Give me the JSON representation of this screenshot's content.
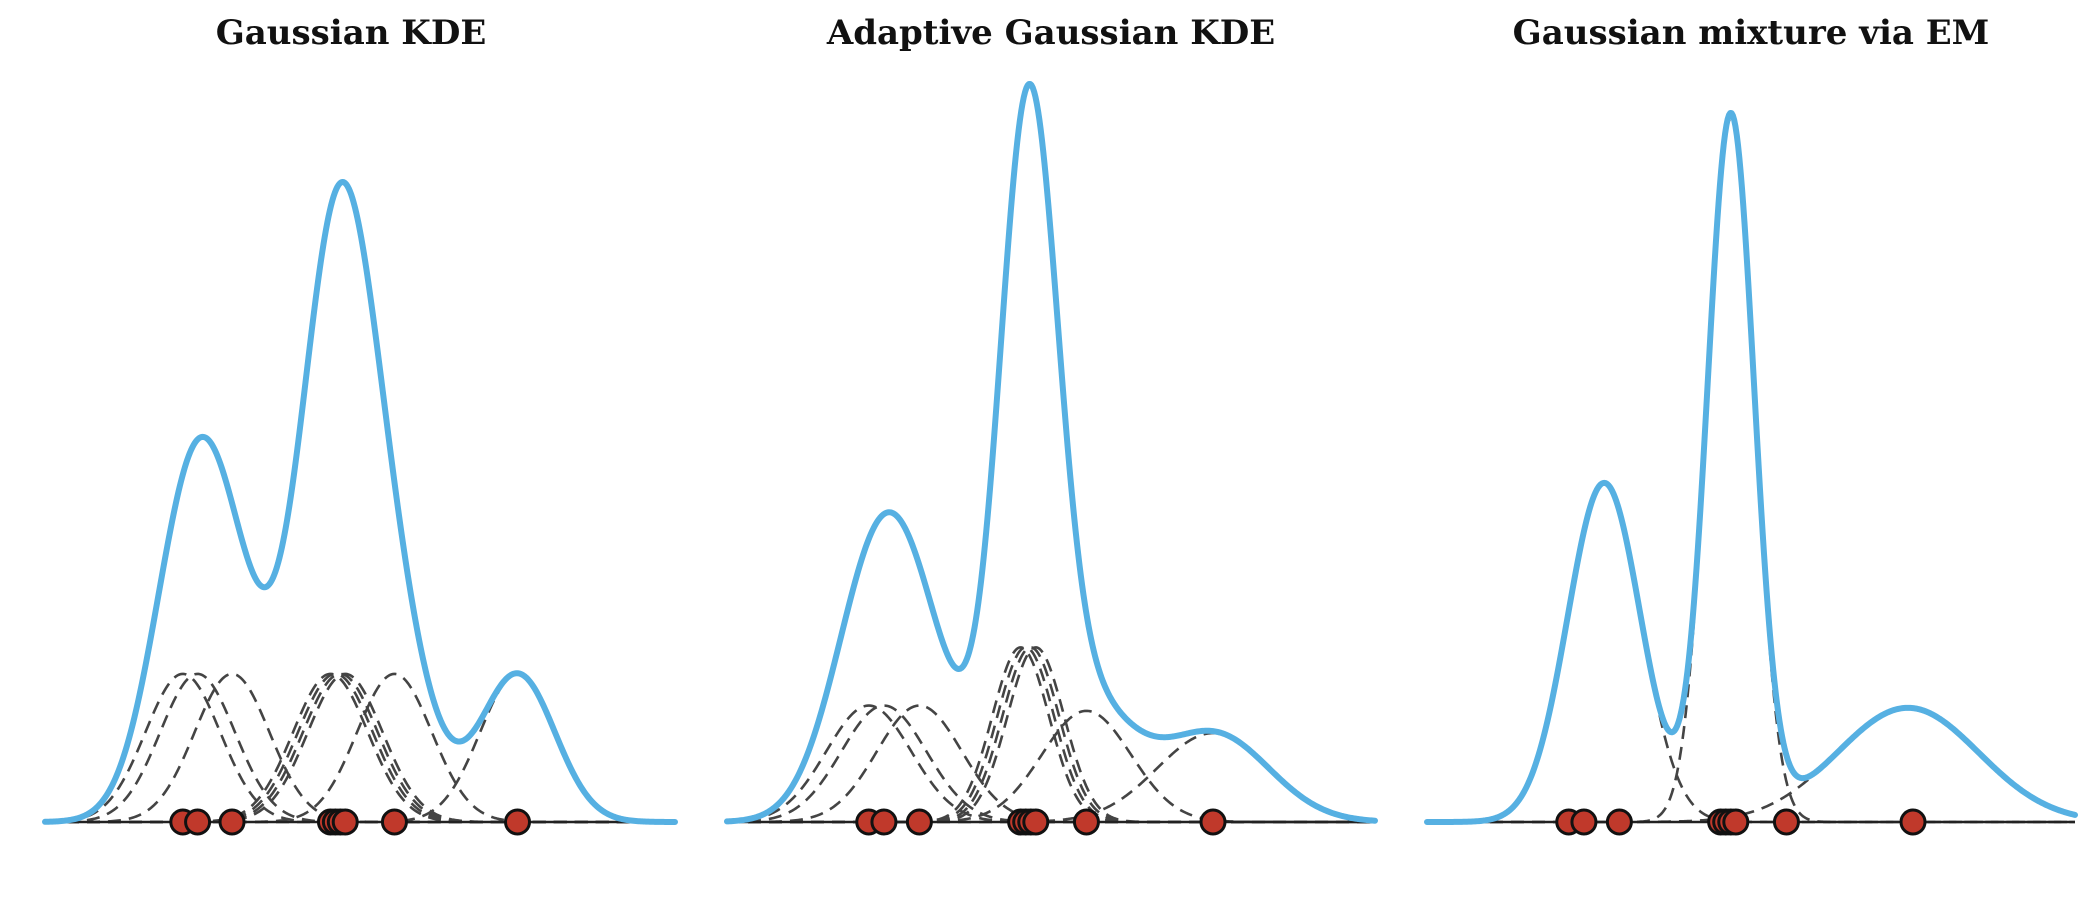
{
  "colors": {
    "density": "#56B0E2",
    "component": "#444444",
    "point_fill": "#C0392B",
    "point_edge": "#111111",
    "axis": "#222222"
  },
  "chart_data": [
    {
      "type": "line",
      "title": "Gaussian KDE",
      "x_range": [
        -3.2,
        3.2
      ],
      "points": [
        -1.8,
        -1.65,
        -1.3,
        -0.3,
        -0.25,
        -0.2,
        -0.15,
        0.35,
        1.6
      ],
      "components": [
        {
          "mu": -1.8,
          "sigma": 0.38,
          "w": 0.111
        },
        {
          "mu": -1.65,
          "sigma": 0.38,
          "w": 0.111
        },
        {
          "mu": -1.3,
          "sigma": 0.38,
          "w": 0.111
        },
        {
          "mu": -0.3,
          "sigma": 0.38,
          "w": 0.111
        },
        {
          "mu": -0.25,
          "sigma": 0.38,
          "w": 0.111
        },
        {
          "mu": -0.2,
          "sigma": 0.38,
          "w": 0.111
        },
        {
          "mu": -0.15,
          "sigma": 0.38,
          "w": 0.111
        },
        {
          "mu": 0.35,
          "sigma": 0.38,
          "w": 0.111
        },
        {
          "mu": 1.6,
          "sigma": 0.38,
          "w": 0.111
        }
      ]
    },
    {
      "type": "line",
      "title": "Adaptive Gaussian KDE",
      "x_range": [
        -3.2,
        3.2
      ],
      "points": [
        -1.8,
        -1.65,
        -1.3,
        -0.3,
        -0.25,
        -0.2,
        -0.15,
        0.35,
        1.6
      ],
      "components": [
        {
          "mu": -1.8,
          "sigma": 0.42,
          "w": 0.111
        },
        {
          "mu": -1.65,
          "sigma": 0.42,
          "w": 0.111
        },
        {
          "mu": -1.3,
          "sigma": 0.42,
          "w": 0.111
        },
        {
          "mu": -0.3,
          "sigma": 0.28,
          "w": 0.111
        },
        {
          "mu": -0.25,
          "sigma": 0.28,
          "w": 0.111
        },
        {
          "mu": -0.2,
          "sigma": 0.28,
          "w": 0.111
        },
        {
          "mu": -0.15,
          "sigma": 0.28,
          "w": 0.111
        },
        {
          "mu": 0.35,
          "sigma": 0.44,
          "w": 0.111
        },
        {
          "mu": 1.6,
          "sigma": 0.55,
          "w": 0.111
        }
      ]
    },
    {
      "type": "line",
      "title": "Gaussian mixture via EM",
      "x_range": [
        -3.2,
        3.2
      ],
      "points": [
        -1.8,
        -1.65,
        -1.3,
        -0.3,
        -0.25,
        -0.2,
        -0.15,
        0.35,
        1.6
      ],
      "components": [
        {
          "mu": -1.45,
          "sigma": 0.36,
          "w": 0.3356
        },
        {
          "mu": -0.2,
          "sigma": 0.23,
          "w": 0.4447
        },
        {
          "mu": 1.55,
          "sigma": 0.7,
          "w": 0.2197
        }
      ]
    }
  ]
}
